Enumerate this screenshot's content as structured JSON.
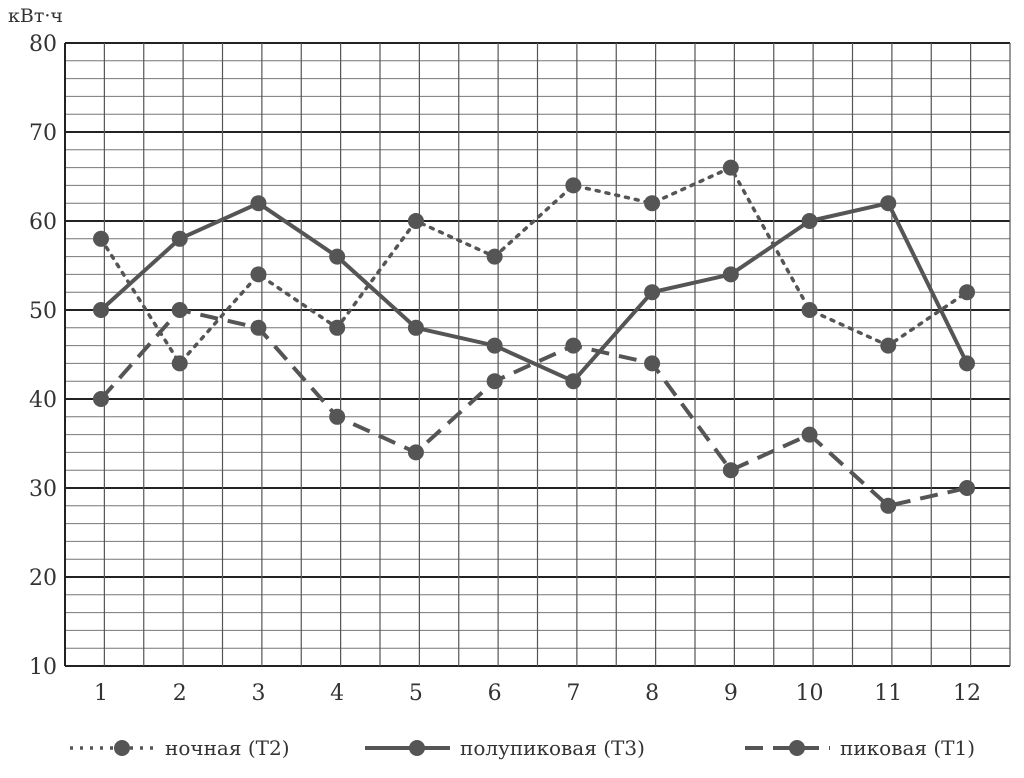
{
  "chart_data": {
    "type": "line",
    "title": "",
    "ylabel": "кВт·ч",
    "xlabel": "",
    "x": [
      1,
      2,
      3,
      4,
      5,
      6,
      7,
      8,
      9,
      10,
      11,
      12
    ],
    "ylim": [
      10,
      80
    ],
    "yticks": [
      10,
      20,
      30,
      40,
      50,
      60,
      70,
      80
    ],
    "grid": true,
    "legend_position": "bottom",
    "series": [
      {
        "name": "ночная (Т2)",
        "style": "dotted",
        "color": "#555555",
        "values": [
          58,
          44,
          54,
          48,
          60,
          56,
          64,
          62,
          66,
          50,
          46,
          52
        ]
      },
      {
        "name": "полупиковая (Т3)",
        "style": "solid",
        "color": "#555555",
        "values": [
          50,
          58,
          62,
          56,
          48,
          46,
          42,
          52,
          54,
          60,
          62,
          44
        ]
      },
      {
        "name": "пиковая (Т1)",
        "style": "dashed",
        "color": "#555555",
        "values": [
          40,
          50,
          48,
          38,
          34,
          42,
          46,
          44,
          32,
          36,
          28,
          30
        ]
      }
    ]
  }
}
